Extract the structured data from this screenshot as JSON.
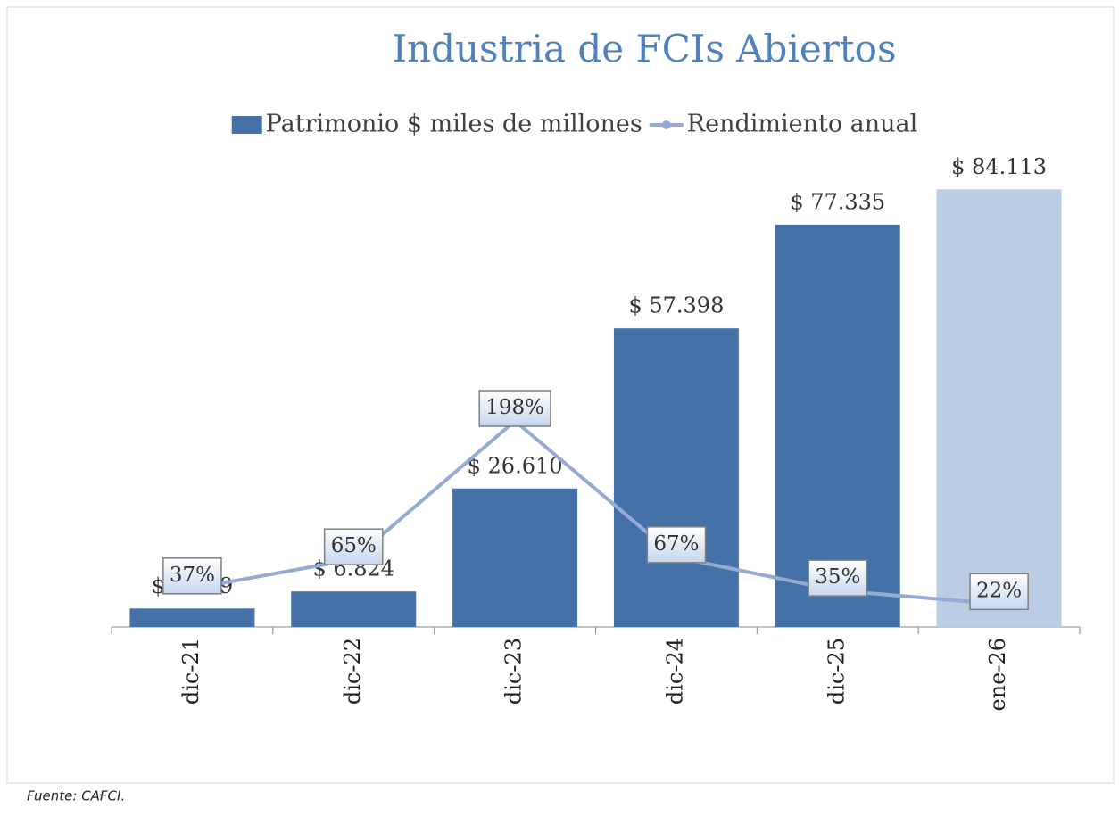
{
  "chart_data": {
    "type": "bar",
    "title": "Industria de FCIs Abiertos",
    "source": "Fuente: CAFCI.",
    "categories": [
      "dic-21",
      "dic-22",
      "dic-23",
      "dic-24",
      "dic-25",
      "ene-26"
    ],
    "ylim": [
      0,
      90000
    ],
    "y2lim": [
      0,
      450
    ],
    "legend": "top",
    "series": [
      {
        "name": "Patrimonio $ miles de millones",
        "type": "bar",
        "color": "#4472a8",
        "colors": [
          "#4472a8",
          "#4472a8",
          "#4472a8",
          "#4472a8",
          "#4472a8",
          "#b9cde5"
        ],
        "values": [
          3549,
          6824,
          26610,
          57398,
          77335,
          84113
        ],
        "value_labels": [
          "$ 3.549",
          "$ 6.824",
          "$ 26.610",
          "$ 57.398",
          "$ 77.335",
          "$ 84.113"
        ]
      },
      {
        "name": "Rendimiento anual",
        "type": "line",
        "axis": "y2",
        "color": "#95abd4",
        "values": [
          37,
          65,
          198,
          67,
          35,
          22
        ],
        "value_labels": [
          "37%",
          "65%",
          "198%",
          "67%",
          "35%",
          "22%"
        ]
      }
    ]
  }
}
